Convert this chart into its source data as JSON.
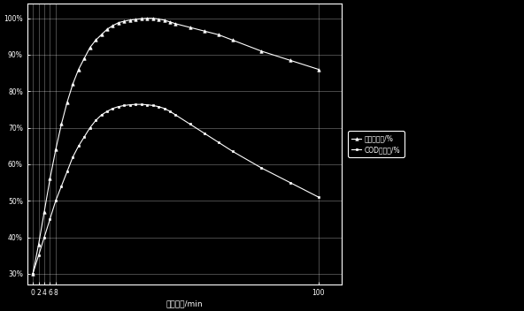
{
  "title": "",
  "xlabel": "电解时间/min",
  "ylabel": "",
  "background_color": "#000000",
  "plot_bg_color": "#000000",
  "text_color": "#ffffff",
  "grid_color": "#ffffff",
  "figsize": [
    5.92,
    3.52
  ],
  "dpi": 100,
  "series1_x": [
    0,
    2,
    4,
    6,
    8,
    10,
    12,
    14,
    16,
    18,
    20,
    22,
    24,
    26,
    28,
    30,
    32,
    34,
    36,
    38,
    40,
    42,
    44,
    46,
    48,
    50,
    55,
    60,
    65,
    70,
    80,
    90,
    100
  ],
  "series1_y": [
    30,
    38,
    47,
    56,
    64,
    71,
    77,
    82,
    86,
    89,
    92,
    94,
    95.5,
    97,
    98,
    98.8,
    99.2,
    99.5,
    99.7,
    99.9,
    100,
    100,
    99.8,
    99.5,
    99,
    98.5,
    97.5,
    96.5,
    95.5,
    94,
    91,
    88.5,
    86
  ],
  "series2_x": [
    0,
    2,
    4,
    6,
    8,
    10,
    12,
    14,
    16,
    18,
    20,
    22,
    24,
    26,
    28,
    30,
    32,
    34,
    36,
    38,
    40,
    42,
    44,
    46,
    48,
    50,
    55,
    60,
    65,
    70,
    80,
    90,
    100
  ],
  "series2_y": [
    30,
    35,
    40,
    45,
    50,
    54,
    58,
    62,
    65,
    67.5,
    70,
    72,
    73.5,
    74.5,
    75.3,
    75.8,
    76.1,
    76.3,
    76.4,
    76.4,
    76.3,
    76.1,
    75.8,
    75.3,
    74.5,
    73.5,
    71,
    68.5,
    66,
    63.5,
    59,
    55,
    51
  ],
  "xtick_positions": [
    0,
    2,
    4,
    6,
    8,
    100
  ],
  "xtick_labels": [
    "0",
    "2",
    "4",
    "6",
    "8",
    "100"
  ],
  "ytick_positions": [
    30,
    40,
    50,
    60,
    70,
    80,
    90,
    100
  ],
  "ytick_labels": [
    "30%",
    "40%",
    "50%",
    "60%",
    "70%",
    "80%",
    "90%",
    "100%"
  ],
  "xlim": [
    -2,
    108
  ],
  "ylim": [
    27,
    104
  ],
  "label1": "苯酚去除率/%",
  "label2": "COD去除率/%"
}
